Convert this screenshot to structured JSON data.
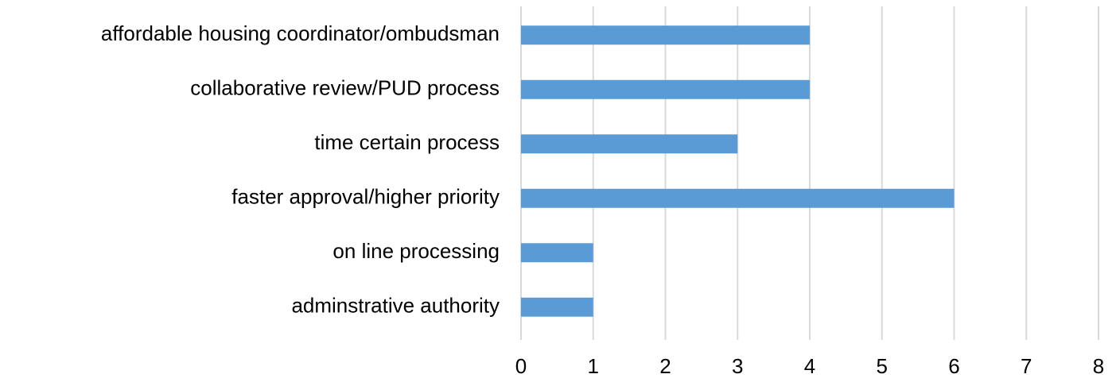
{
  "chart_data": {
    "type": "bar",
    "orientation": "horizontal",
    "categories": [
      "affordable housing coordinator/ombudsman",
      "collaborative review/PUD process",
      "time certain process",
      "faster approval/higher priority",
      "on line processing",
      "adminstrative authority"
    ],
    "values": [
      4,
      4,
      3,
      6,
      1,
      1
    ],
    "color": "#5b9bd5",
    "xlim": [
      0,
      8
    ],
    "xticks": [
      0,
      1,
      2,
      3,
      4,
      5,
      6,
      7,
      8
    ],
    "grid": true
  }
}
